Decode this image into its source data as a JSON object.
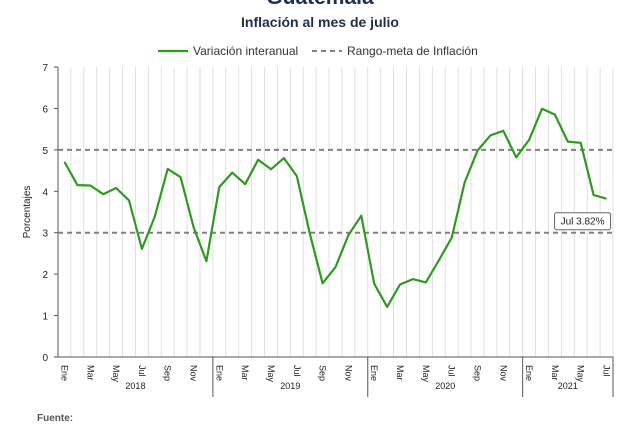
{
  "header": {
    "title": "Guatemala",
    "subtitle": "Inflación al mes de julio"
  },
  "footer": {
    "source_label": "Fuente:"
  },
  "chart_data": {
    "type": "line",
    "ylabel": "Porcentajes",
    "ylim": [
      0,
      7
    ],
    "yticks": [
      0,
      1,
      2,
      3,
      4,
      5,
      6,
      7
    ],
    "grid": "vertical per month",
    "legend_position": "top-center",
    "month_labels": [
      "Ene",
      "",
      "Mar",
      "",
      "May",
      "",
      "Jul",
      "",
      "Sep",
      "",
      "Nov",
      "",
      "Ene",
      "",
      "Mar",
      "",
      "May",
      "",
      "Jul",
      "",
      "Sep",
      "",
      "Nov",
      "",
      "Ene",
      "",
      "Mar",
      "",
      "May",
      "",
      "Jul",
      "",
      "Sep",
      "",
      "Nov",
      "",
      "Ene",
      "",
      "Mar",
      "",
      "May",
      "",
      "Jul"
    ],
    "years": [
      {
        "label": "2018",
        "start": 0,
        "end": 12
      },
      {
        "label": "2019",
        "start": 12,
        "end": 24
      },
      {
        "label": "2020",
        "start": 24,
        "end": 36
      },
      {
        "label": "2021",
        "start": 36,
        "end": 43
      }
    ],
    "series": [
      {
        "name": "Variación interanual",
        "color": "#2e9a1f",
        "style": "solid",
        "values": [
          4.71,
          4.15,
          4.14,
          3.93,
          4.08,
          3.78,
          2.61,
          3.39,
          4.54,
          4.34,
          3.14,
          2.31,
          4.1,
          4.45,
          4.17,
          4.76,
          4.53,
          4.8,
          4.37,
          2.99,
          1.78,
          2.17,
          2.94,
          3.41,
          1.77,
          1.21,
          1.75,
          1.88,
          1.8,
          2.33,
          2.88,
          4.21,
          4.98,
          5.35,
          5.46,
          4.82,
          5.24,
          5.99,
          5.85,
          5.2,
          5.17,
          3.91,
          3.82
        ]
      },
      {
        "name": "Rango-meta de Inflación",
        "color": "#808080",
        "style": "dashed",
        "lines": [
          5,
          3
        ]
      }
    ],
    "annotation": {
      "label": "Jul 3.82%",
      "index": 42,
      "value": 3.82
    }
  }
}
